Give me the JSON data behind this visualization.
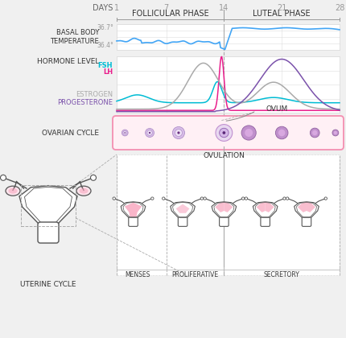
{
  "bg_color": "#f0f0f0",
  "chart_bg": "#ffffff",
  "grid_color": "#dddddd",
  "days": [
    1,
    7,
    14,
    21,
    28
  ],
  "follicular_phase": "FOLLICULAR PHASE",
  "luteal_phase": "LUTEAL PHASE",
  "temp_label": "BASAL BODY\nTEMPERATURE",
  "temp_high": "36.7°",
  "temp_low": "36.4°",
  "hormone_label": "HORMONE LEVEL",
  "fsh_label": "FSH",
  "lh_label": "LH",
  "estrogen_label": "ESTROGEN",
  "progesterone_label": "PROGESTERONE",
  "ovarian_label": "OVARIAN CYCLE",
  "ovulation_label": "OVULATION",
  "ovum_label": "OVUM",
  "uterine_label": "UTERINE CYCLE",
  "menses_label": "MENSES",
  "proliferative_label": "PROLIFERATIVE",
  "secretory_label": "SECRETORY",
  "days_label": "DAYS",
  "colors": {
    "fsh": "#00bcd4",
    "lh": "#e91e8c",
    "estrogen": "#aaaaaa",
    "progesterone": "#7b52ab",
    "temp": "#42a5f5",
    "grid": "#dddddd",
    "ovarian_border": "#f48fb1",
    "ovarian_fill": "#fff0f5",
    "egg_outer_light": "#d4b8e0",
    "egg_outer_dark": "#b07cc0",
    "egg_inner": "#e8d5f0",
    "egg_nucleus": "#6a3d8f",
    "egg_dot": "#3d1a6e",
    "uterus_line": "#555555",
    "uterus_fill": "#f8a8c0",
    "label_dark": "#333333",
    "label_mid": "#666666",
    "label_light": "#999999",
    "phase_line": "#999999",
    "dashed_line": "#aaaaaa"
  }
}
